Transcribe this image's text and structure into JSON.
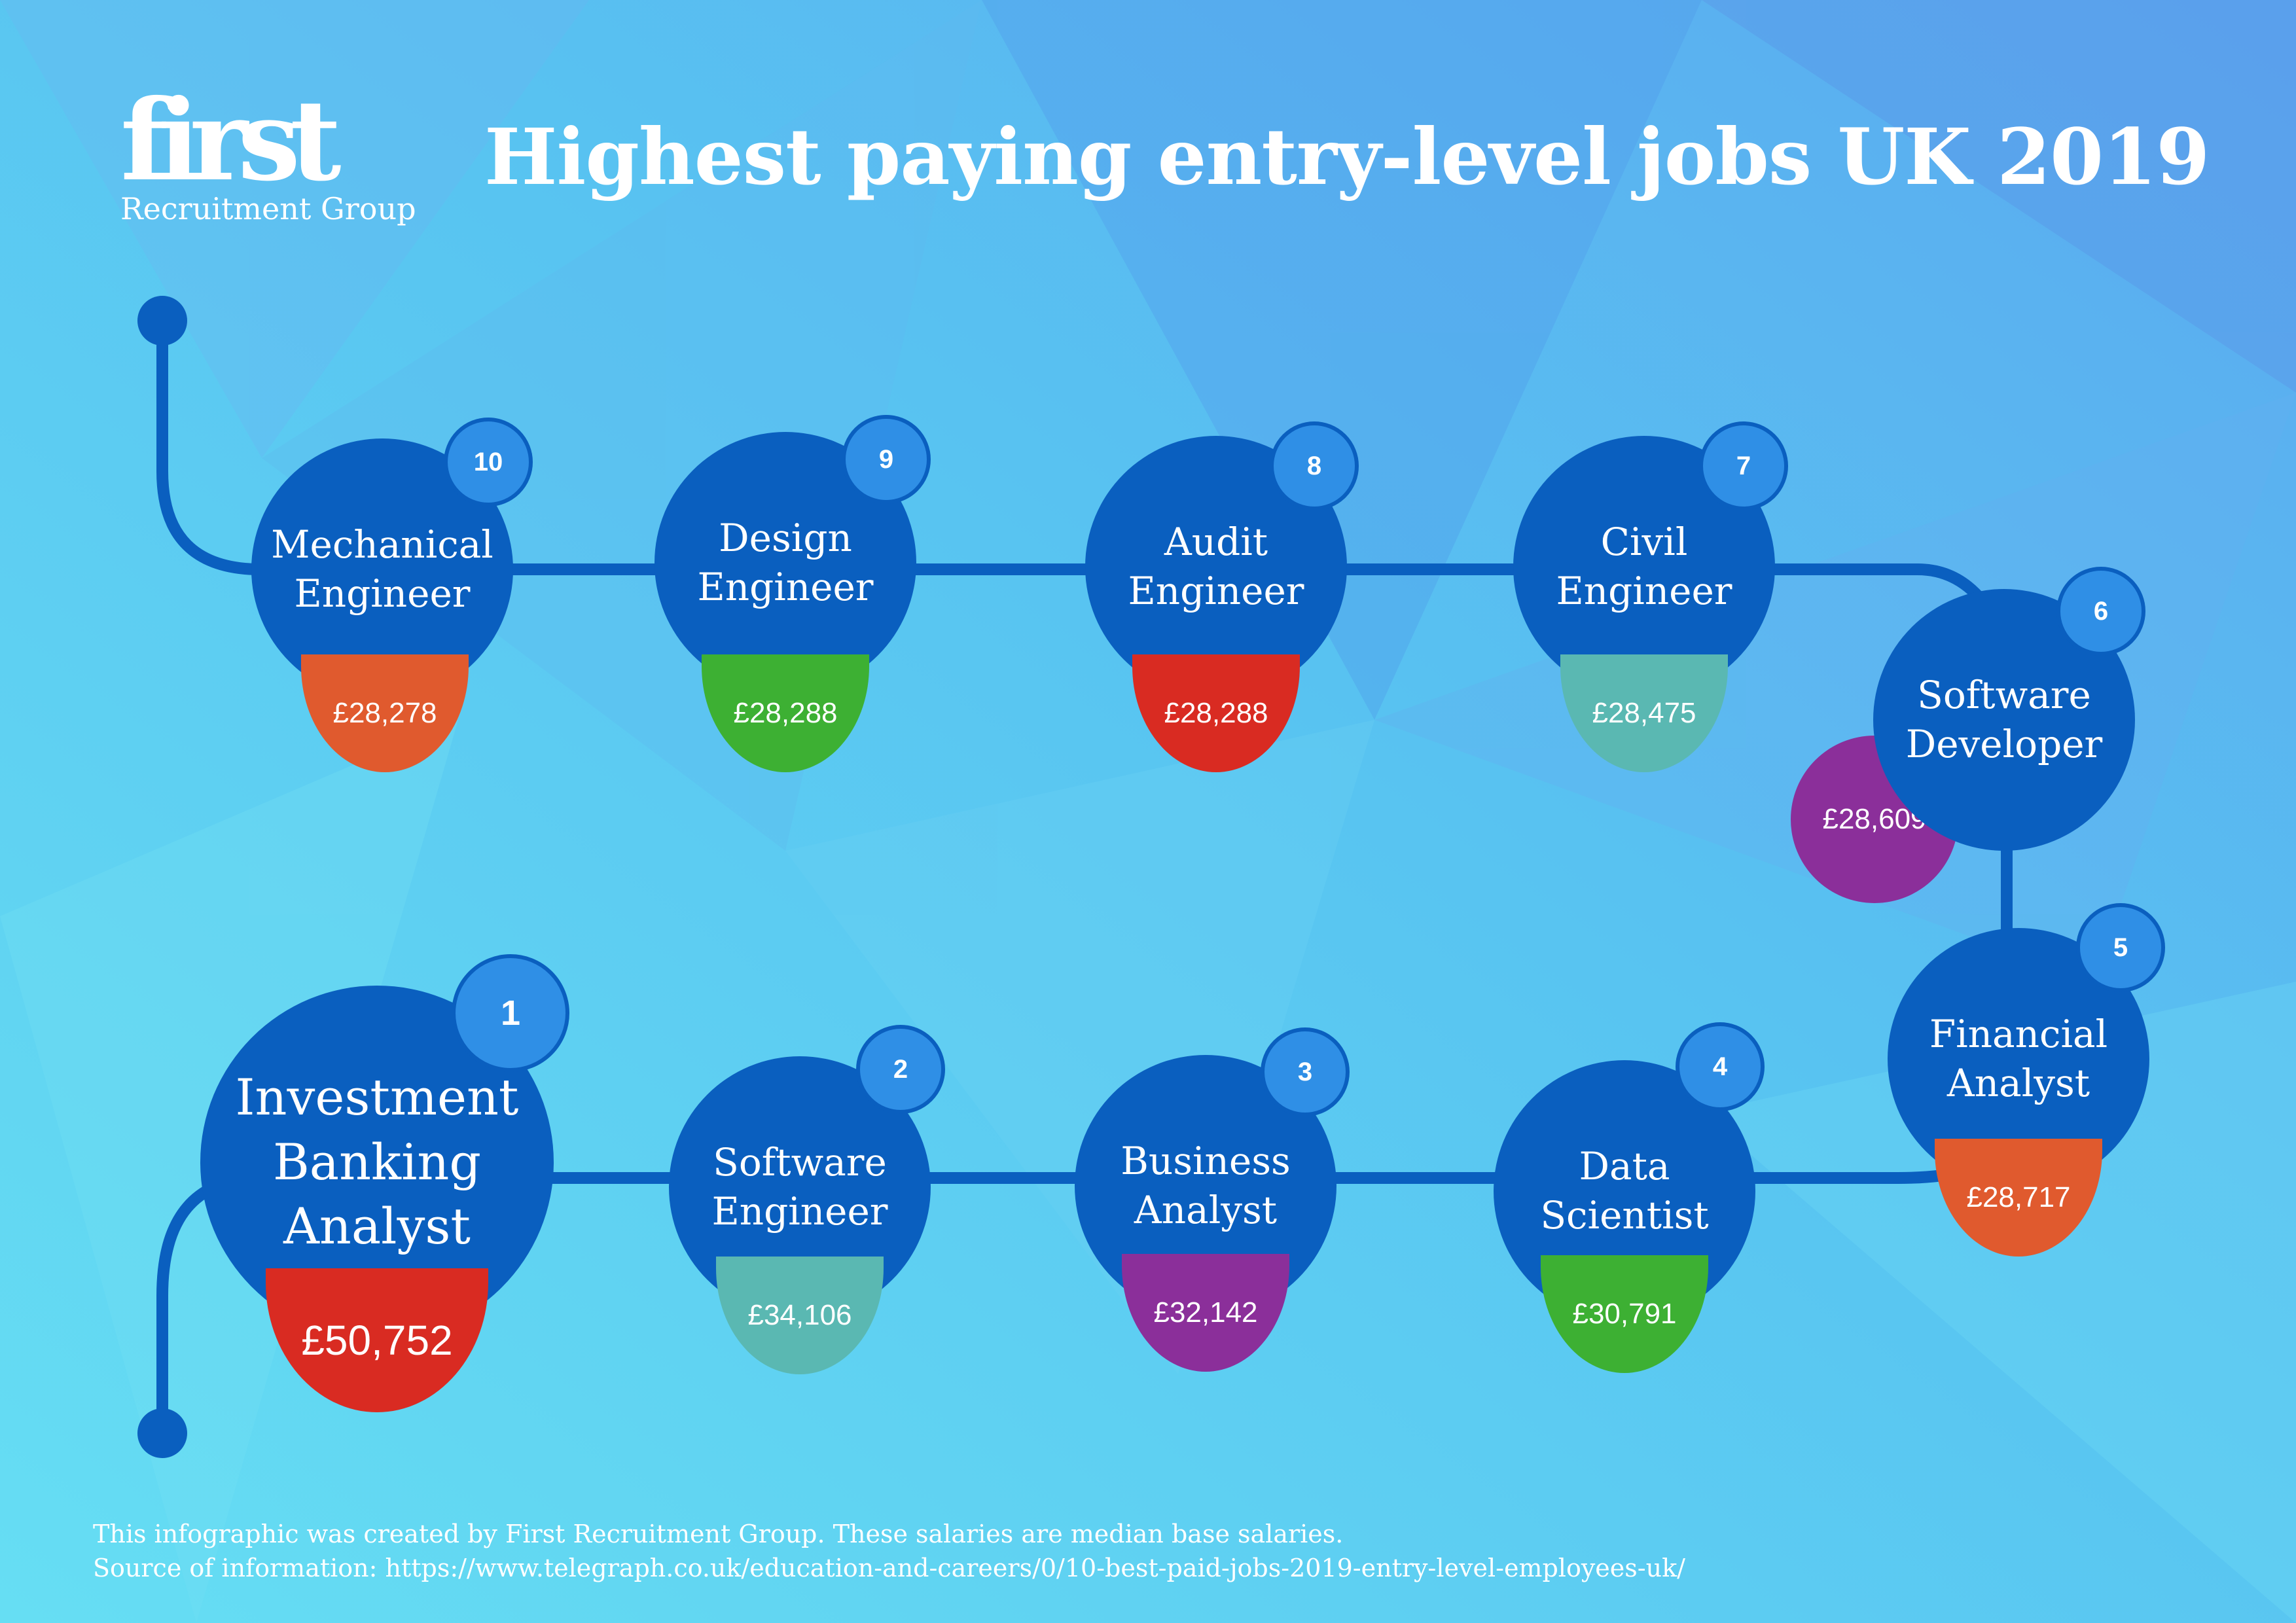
{
  "logo": {
    "word": "first",
    "sub": "Recruitment Group"
  },
  "title": "Highest paying entry-level jobs UK 2019",
  "colors": {
    "bg_light": "#5fd6f2",
    "bg_mid": "#4fb9ef",
    "bg_dark": "#3d8fe8",
    "circle": "#0a5fbf",
    "badge": "#2f8fe6",
    "track": "#0a5fbf",
    "orange": "#e05a2e",
    "green": "#3db033",
    "red": "#d92b22",
    "teal": "#5ab8b2",
    "purple": "#8b2f9a"
  },
  "jobs": [
    {
      "rank": "10",
      "name": "Mechanical\nEngineer",
      "salary": "£28,278",
      "color": "orange"
    },
    {
      "rank": "9",
      "name": "Design\nEngineer",
      "salary": "£28,288",
      "color": "green"
    },
    {
      "rank": "8",
      "name": "Audit\nEngineer",
      "salary": "£28,288",
      "color": "red"
    },
    {
      "rank": "7",
      "name": "Civil\nEngineer",
      "salary": "£28,475",
      "color": "teal"
    },
    {
      "rank": "6",
      "name": "Software\nDeveloper",
      "salary": "£28,609",
      "color": "purple"
    },
    {
      "rank": "5",
      "name": "Financial\nAnalyst",
      "salary": "£28,717",
      "color": "orange"
    },
    {
      "rank": "4",
      "name": "Data\nScientist",
      "salary": "£30,791",
      "color": "green"
    },
    {
      "rank": "3",
      "name": "Business\nAnalyst",
      "salary": "£32,142",
      "color": "purple"
    },
    {
      "rank": "2",
      "name": "Software\nEngineer",
      "salary": "£34,106",
      "color": "teal"
    },
    {
      "rank": "1",
      "name": "Investment\nBanking\nAnalyst",
      "salary": "£50,752",
      "color": "red"
    }
  ],
  "footer": {
    "line1": "This infographic was created by First Recruitment Group. These salaries are median base salaries.",
    "line2": "Source of information: https://www.telegraph.co.uk/education-and-careers/0/10-best-paid-jobs-2019-entry-level-employees-uk/"
  }
}
